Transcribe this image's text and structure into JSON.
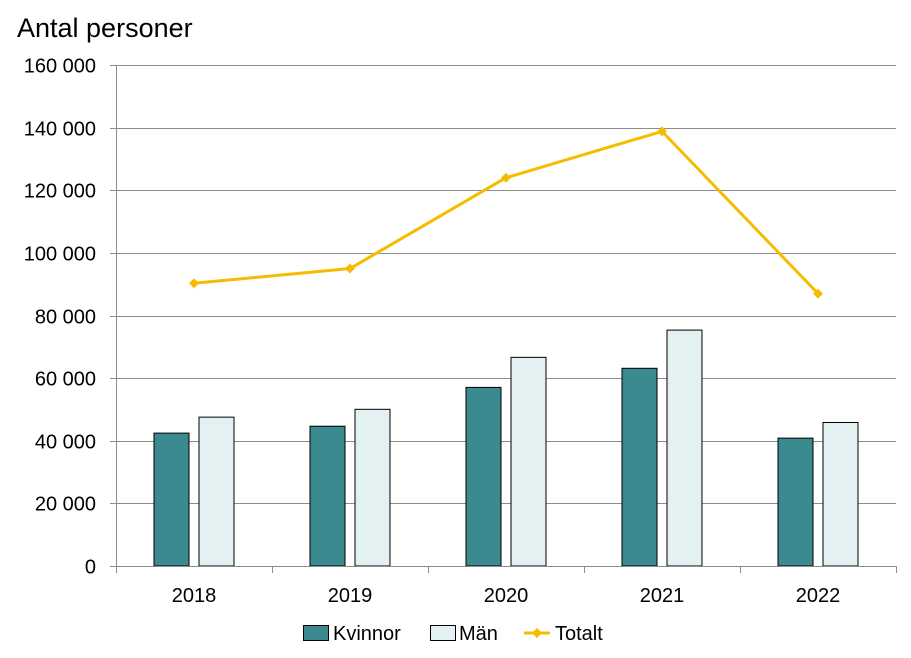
{
  "chart_data": {
    "type": "bar",
    "title": "Antal personer",
    "categories": [
      "2018",
      "2019",
      "2020",
      "2021",
      "2022"
    ],
    "series": [
      {
        "name": "Kvinnor",
        "type": "bar",
        "color": "#3a8a8f",
        "values": [
          42600,
          44800,
          57200,
          63300,
          41000
        ]
      },
      {
        "name": "Män",
        "type": "bar",
        "color": "#e3f1f2",
        "values": [
          47700,
          50200,
          66800,
          75500,
          46000
        ]
      },
      {
        "name": "Totalt",
        "type": "line",
        "color": "#f5bc00",
        "values": [
          90300,
          95000,
          124000,
          138800,
          87000
        ]
      }
    ],
    "ylim": [
      0,
      160000
    ],
    "yticks": [
      "0",
      "20 000",
      "40 000",
      "60 000",
      "80 000",
      "100 000",
      "120 000",
      "140 000",
      "160 000"
    ],
    "grid": true,
    "legend": "bottom"
  }
}
